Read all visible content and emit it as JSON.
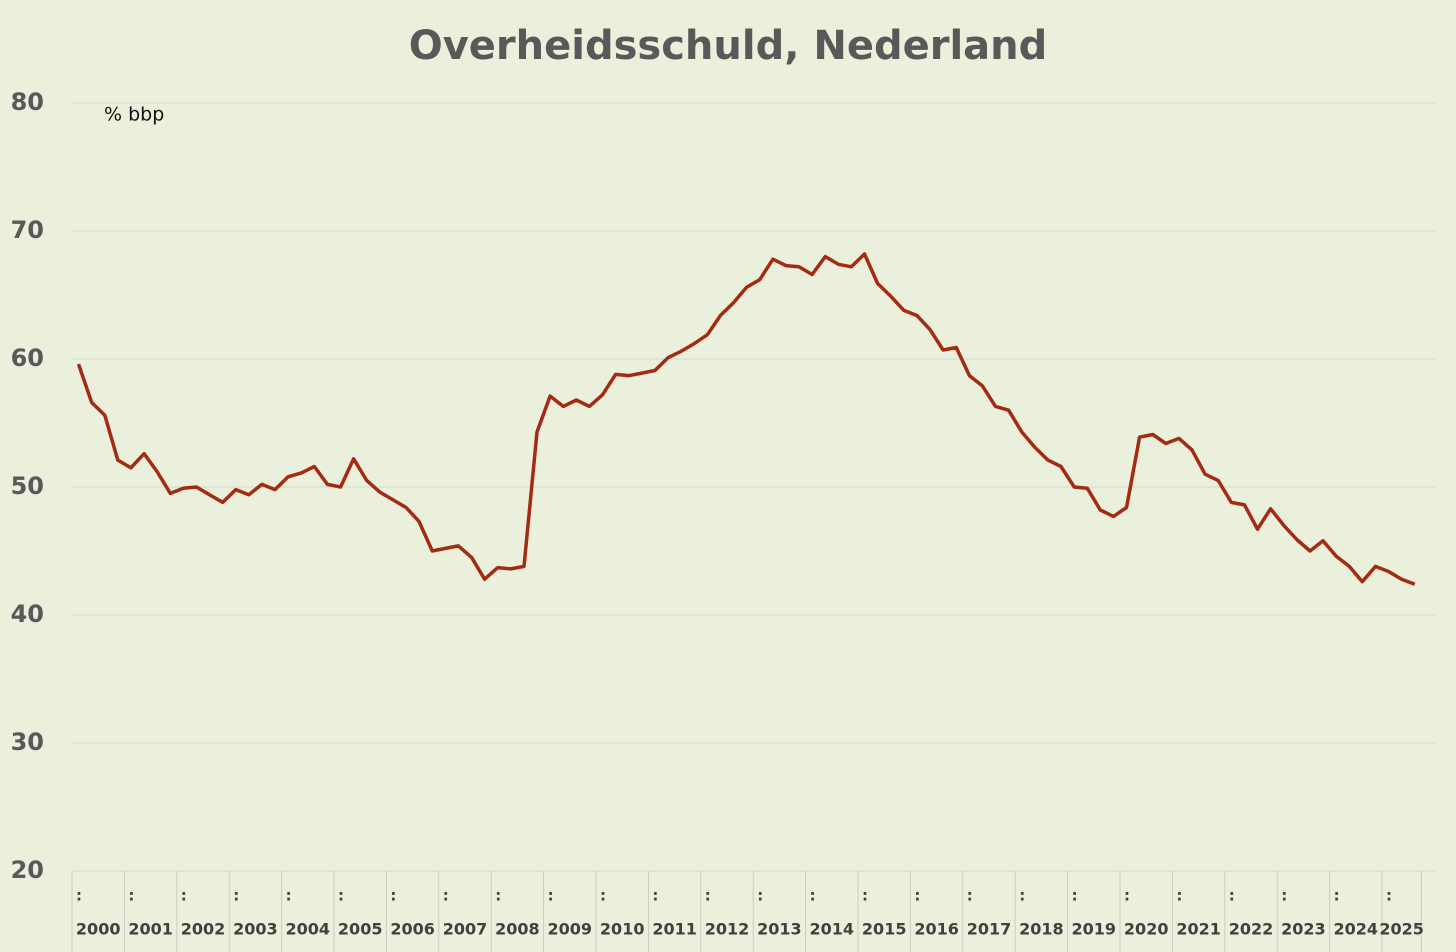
{
  "chart_data": {
    "type": "line",
    "title": "Overheidsschuld, Nederland",
    "y_unit_label": "% bbp",
    "categories": [
      ":",
      null,
      null,
      null,
      ":",
      null,
      null,
      null,
      ":",
      null,
      null,
      null,
      ":",
      null,
      null,
      null,
      ":",
      null,
      null,
      null,
      ":",
      null,
      null,
      null,
      ":",
      null,
      null,
      null,
      ":",
      null,
      null,
      null,
      ":",
      null,
      null,
      null,
      ":",
      null,
      null,
      null,
      ":",
      null,
      null,
      null,
      ":",
      null,
      null,
      null,
      ":",
      null,
      null,
      null,
      ":",
      null,
      null,
      null,
      ":",
      null,
      null,
      null,
      ":",
      null,
      null,
      null,
      ":",
      null,
      null,
      null,
      ":",
      null,
      null,
      null,
      ":",
      null,
      null,
      null,
      ":",
      null,
      null,
      null,
      ":",
      null,
      null,
      null,
      ":",
      null,
      null,
      null,
      ":",
      null,
      null,
      null,
      ":",
      null,
      null,
      null,
      ":",
      null,
      null,
      null,
      ":",
      null,
      null
    ],
    "groups": [
      "2000",
      "2001",
      "2002",
      "2003",
      "2004",
      "2005",
      "2006",
      "2007",
      "2008",
      "2009",
      "2010",
      "2011",
      "2012",
      "2013",
      "2014",
      "2015",
      "2016",
      "2017",
      "2018",
      "2019",
      "2020",
      "2021",
      "2022",
      "2023",
      "2024",
      "2025"
    ],
    "series": [
      {
        "name": "Overheidsschuld",
        "color": "#a52a12",
        "values": [
          59.6,
          56.6,
          55.6,
          52.1,
          51.5,
          52.6,
          51.2,
          49.5,
          49.9,
          50.0,
          49.4,
          48.8,
          49.8,
          49.4,
          50.2,
          49.8,
          50.8,
          51.1,
          51.6,
          50.2,
          50.0,
          52.2,
          50.5,
          49.6,
          49.0,
          48.4,
          47.3,
          45.0,
          45.2,
          45.4,
          44.5,
          42.8,
          43.7,
          43.6,
          43.8,
          54.3,
          57.1,
          56.3,
          56.8,
          56.3,
          57.2,
          58.8,
          58.7,
          58.9,
          59.1,
          60.1,
          60.6,
          61.2,
          61.9,
          63.4,
          64.4,
          65.6,
          66.2,
          67.8,
          67.3,
          67.2,
          66.6,
          68.0,
          67.4,
          67.2,
          68.2,
          65.9,
          64.9,
          63.8,
          63.4,
          62.3,
          60.7,
          60.9,
          58.7,
          57.9,
          56.3,
          56.0,
          54.3,
          53.1,
          52.1,
          51.6,
          50.0,
          49.9,
          48.2,
          47.7,
          48.4,
          53.9,
          54.1,
          53.4,
          53.8,
          52.9,
          51.0,
          50.5,
          48.8,
          48.6,
          46.7,
          48.3,
          47.0,
          45.9,
          45.0,
          45.8,
          44.6,
          43.8,
          42.6,
          43.8,
          43.4,
          42.8,
          42.4
        ]
      }
    ],
    "ylim": [
      20,
      80
    ],
    "yticks": [
      20,
      30,
      40,
      50,
      60,
      70,
      80
    ],
    "grid": true
  }
}
